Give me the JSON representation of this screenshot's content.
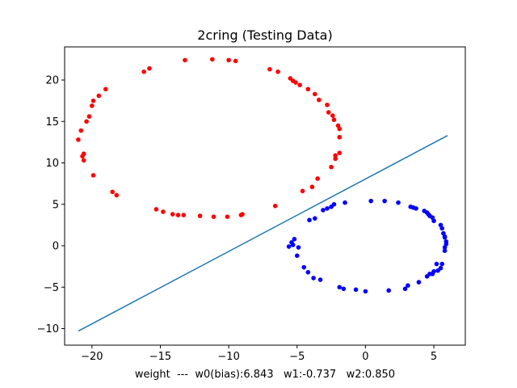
{
  "chart_data": {
    "type": "scatter",
    "title": "2cring (Testing Data)",
    "xlabel": "weight  ---  w0(bias):6.843   w1:-0.737   w2:0.850",
    "ylabel": "",
    "xlim": [
      -22.0,
      7.3
    ],
    "ylim": [
      -12.0,
      24.0
    ],
    "xticks": [
      -20,
      -15,
      -10,
      -5,
      0,
      5
    ],
    "yticks": [
      -10,
      -5,
      0,
      5,
      10,
      15,
      20
    ],
    "grid": false,
    "series": [
      {
        "color": "#ff0000",
        "x": [
          -21.0,
          -20.8,
          -20.7,
          -20.6,
          -20.6,
          -20.4,
          -20.2,
          -20.0,
          -19.9,
          -19.9,
          -19.5,
          -19.0,
          -18.5,
          -18.2,
          -16.2,
          -15.8,
          -15.3,
          -14.8,
          -14.1,
          -13.7,
          -13.3,
          -13.2,
          -12.1,
          -11.2,
          -11.1,
          -10.1,
          -10.0,
          -9.5,
          -9.1,
          -9.0,
          -7.0,
          -6.6,
          -6.4,
          -5.5,
          -5.3,
          -5.1,
          -4.8,
          -4.6,
          -4.2,
          -3.9,
          -3.7,
          -3.5,
          -3.4,
          -2.8,
          -2.7,
          -2.4,
          -2.3,
          -2.0,
          -1.9,
          -1.9,
          -1.9,
          -2.2,
          -2.2,
          -2.5
        ],
        "y": [
          12.8,
          13.9,
          10.8,
          11.1,
          10.3,
          15.0,
          15.6,
          16.9,
          17.5,
          8.5,
          18.1,
          18.9,
          6.5,
          6.1,
          21.0,
          21.4,
          4.4,
          4.1,
          3.8,
          3.7,
          3.7,
          22.4,
          3.6,
          22.5,
          3.5,
          3.5,
          22.4,
          22.3,
          3.7,
          3.8,
          21.3,
          4.8,
          21.0,
          20.2,
          19.9,
          19.7,
          19.4,
          6.6,
          18.9,
          7.1,
          18.3,
          8.1,
          17.6,
          17.0,
          16.1,
          15.7,
          15.2,
          14.5,
          14.1,
          13.1,
          11.2,
          10.9,
          10.5,
          9.5
        ]
      },
      {
        "color": "#0000ff",
        "x": [
          -5.6,
          -5.4,
          -5.3,
          -5.2,
          -5.0,
          -4.9,
          -4.5,
          -4.2,
          -4.1,
          -3.8,
          -3.7,
          -3.3,
          -3.1,
          -2.8,
          -2.5,
          -2.3,
          -1.9,
          -1.6,
          -1.5,
          -0.7,
          0.0,
          0.4,
          1.4,
          1.7,
          2.4,
          2.9,
          3.1,
          3.3,
          3.5,
          3.7,
          3.9,
          4.3,
          4.5,
          4.6,
          4.7,
          4.9,
          5.0,
          5.3,
          5.5,
          5.6,
          5.7,
          5.8,
          5.8,
          5.9,
          5.9,
          5.8,
          5.8,
          5.6,
          5.5,
          5.2,
          5.0,
          4.9,
          4.7,
          4.5
        ],
        "y": [
          -0.1,
          0.4,
          0.1,
          0.8,
          -1.2,
          -0.2,
          -2.6,
          -3.2,
          3.1,
          -3.9,
          3.3,
          -4.1,
          4.3,
          4.5,
          4.7,
          5.0,
          -5.0,
          -5.2,
          5.2,
          -5.3,
          -5.5,
          5.4,
          5.4,
          -5.4,
          5.2,
          -5.2,
          -4.8,
          4.7,
          4.6,
          4.5,
          -4.4,
          4.2,
          4.0,
          3.8,
          3.6,
          -3.4,
          -3.1,
          -3.0,
          -2.7,
          -2.2,
          1.5,
          1.1,
          -0.2,
          0.2,
          0.5,
          1.0,
          -0.6,
          2.1,
          2.5,
          -2.2,
          3.0,
          3.4,
          -3.4,
          -3.7
        ]
      },
      {
        "type": "line",
        "color": "#1f77b4",
        "x": [
          -21.0,
          6.0
        ],
        "y": [
          -10.3,
          13.3
        ]
      }
    ]
  }
}
